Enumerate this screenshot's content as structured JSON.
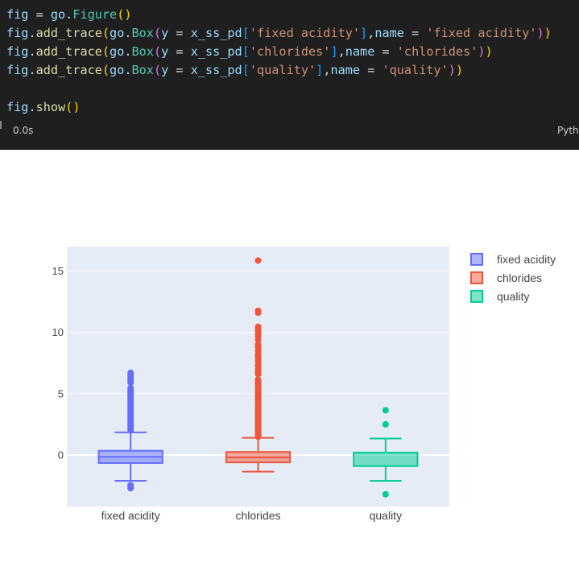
{
  "code": {
    "lines": [
      [
        [
          "tok-var",
          "fig"
        ],
        [
          "tok-op",
          " = "
        ],
        [
          "tok-var",
          "go"
        ],
        [
          "tok-op",
          "."
        ],
        [
          "tok-cls",
          "Figure"
        ],
        [
          "tok-par",
          "()"
        ]
      ],
      [
        [
          "tok-var",
          "fig"
        ],
        [
          "tok-op",
          "."
        ],
        [
          "tok-fn",
          "add_trace"
        ],
        [
          "tok-par",
          "("
        ],
        [
          "tok-var",
          "go"
        ],
        [
          "tok-op",
          "."
        ],
        [
          "tok-cls",
          "Box"
        ],
        [
          "tok-par2",
          "("
        ],
        [
          "tok-var",
          "y"
        ],
        [
          "tok-op",
          " = "
        ],
        [
          "tok-var",
          "x_ss_pd"
        ],
        [
          "tok-par3",
          "["
        ],
        [
          "tok-str",
          "'fixed acidity'"
        ],
        [
          "tok-par3",
          "]"
        ],
        [
          "tok-op",
          ","
        ],
        [
          "tok-var",
          "name"
        ],
        [
          "tok-op",
          " = "
        ],
        [
          "tok-str",
          "'fixed acidity'"
        ],
        [
          "tok-par2",
          ")"
        ],
        [
          "tok-par",
          ")"
        ]
      ],
      [
        [
          "tok-var",
          "fig"
        ],
        [
          "tok-op",
          "."
        ],
        [
          "tok-fn",
          "add_trace"
        ],
        [
          "tok-par",
          "("
        ],
        [
          "tok-var",
          "go"
        ],
        [
          "tok-op",
          "."
        ],
        [
          "tok-cls",
          "Box"
        ],
        [
          "tok-par2",
          "("
        ],
        [
          "tok-var",
          "y"
        ],
        [
          "tok-op",
          " = "
        ],
        [
          "tok-var",
          "x_ss_pd"
        ],
        [
          "tok-par3",
          "["
        ],
        [
          "tok-str",
          "'chlorides'"
        ],
        [
          "tok-par3",
          "]"
        ],
        [
          "tok-op",
          ","
        ],
        [
          "tok-var",
          "name"
        ],
        [
          "tok-op",
          " = "
        ],
        [
          "tok-str",
          "'chlorides'"
        ],
        [
          "tok-par2",
          ")"
        ],
        [
          "tok-par",
          ")"
        ]
      ],
      [
        [
          "tok-var",
          "fig"
        ],
        [
          "tok-op",
          "."
        ],
        [
          "tok-fn",
          "add_trace"
        ],
        [
          "tok-par",
          "("
        ],
        [
          "tok-var",
          "go"
        ],
        [
          "tok-op",
          "."
        ],
        [
          "tok-cls",
          "Box"
        ],
        [
          "tok-par2",
          "("
        ],
        [
          "tok-var",
          "y"
        ],
        [
          "tok-op",
          " = "
        ],
        [
          "tok-var",
          "x_ss_pd"
        ],
        [
          "tok-par3",
          "["
        ],
        [
          "tok-str",
          "'quality'"
        ],
        [
          "tok-par3",
          "]"
        ],
        [
          "tok-op",
          ","
        ],
        [
          "tok-var",
          "name"
        ],
        [
          "tok-op",
          " = "
        ],
        [
          "tok-str",
          "'quality'"
        ],
        [
          "tok-par2",
          ")"
        ],
        [
          "tok-par",
          ")"
        ]
      ],
      [],
      [
        [
          "tok-var",
          "fig"
        ],
        [
          "tok-op",
          "."
        ],
        [
          "tok-fn",
          "show"
        ],
        [
          "tok-par",
          "()"
        ]
      ]
    ],
    "exec_time": "0.0s",
    "language": "Python"
  },
  "chart_data": {
    "type": "box",
    "categories": [
      "fixed acidity",
      "chlorides",
      "quality"
    ],
    "ylim": [
      -4.2,
      17.0
    ],
    "yticks": [
      0,
      5,
      10,
      15
    ],
    "grid": true,
    "legend_placement": "top-right",
    "series": [
      {
        "name": "fixed acidity",
        "color": "#636efa",
        "q1": -0.65,
        "median": -0.15,
        "q3": 0.35,
        "lower_fence": -2.1,
        "upper_fence": 1.85,
        "outliers": [
          -2.45,
          -2.6,
          -2.7,
          2.0,
          2.15,
          2.3,
          2.45,
          2.6,
          2.75,
          2.9,
          3.05,
          3.2,
          3.35,
          3.5,
          3.65,
          3.8,
          3.95,
          4.1,
          4.25,
          4.4,
          4.55,
          4.7,
          4.85,
          5.0,
          5.15,
          5.3,
          5.45,
          5.9,
          6.1,
          6.3,
          6.5,
          6.7
        ]
      },
      {
        "name": "chlorides",
        "color": "#ef553b",
        "q1": -0.6,
        "median": -0.2,
        "q3": 0.25,
        "lower_fence": -1.35,
        "upper_fence": 1.4,
        "outliers": [
          1.5,
          1.65,
          1.8,
          1.95,
          2.1,
          2.25,
          2.4,
          2.55,
          2.7,
          2.85,
          3.0,
          3.15,
          3.3,
          3.45,
          3.6,
          3.75,
          3.9,
          4.05,
          4.2,
          4.35,
          4.5,
          4.65,
          4.8,
          4.95,
          5.1,
          5.25,
          5.4,
          5.55,
          5.7,
          5.85,
          6.0,
          6.15,
          6.6,
          6.8,
          7.0,
          7.3,
          7.6,
          7.8,
          8.0,
          8.2,
          8.5,
          8.8,
          9.0,
          9.4,
          9.7,
          9.9,
          10.1,
          10.3,
          10.45,
          11.6,
          11.75,
          15.85
        ]
      },
      {
        "name": "quality",
        "color": "#00cc96",
        "q1": -0.9,
        "median": 0.2,
        "q3": 0.2,
        "lower_fence": -2.1,
        "upper_fence": 1.35,
        "outliers": [
          -3.2,
          2.5,
          3.65
        ]
      }
    ]
  }
}
